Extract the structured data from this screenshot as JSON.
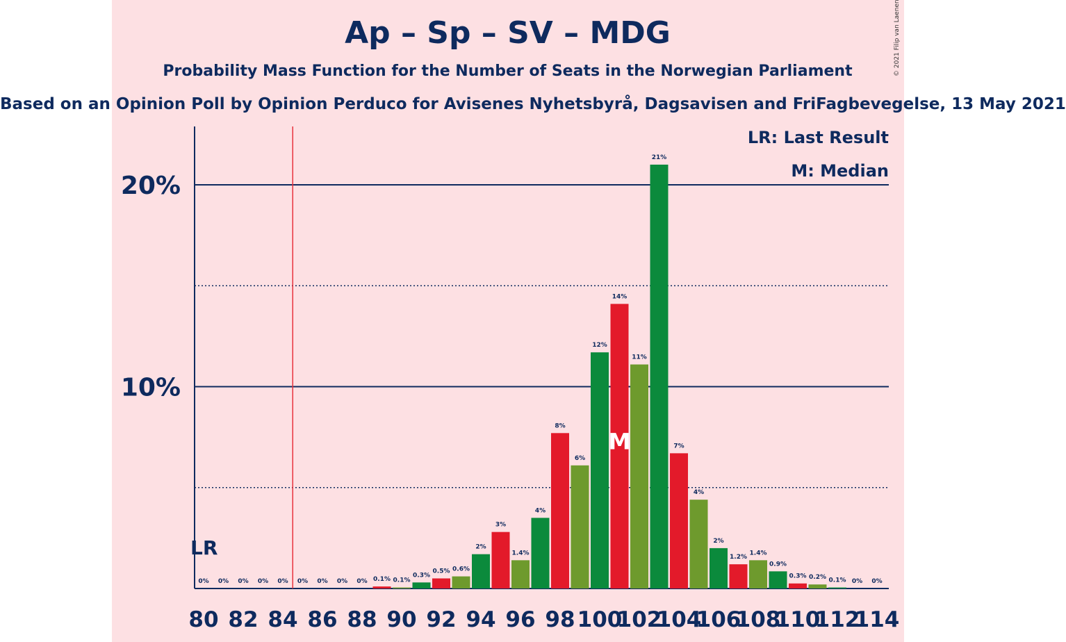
{
  "header": {
    "title": "Ap – Sp – SV – MDG",
    "subtitle": "Probability Mass Function for the Number of Seats in the Norwegian Parliament",
    "source": "Based on an Opinion Poll by Opinion Perduco for Avisenes Nyhetsbyrå, Dagsavisen and FriFagbevegelse, 13 May 2021",
    "copyright": "© 2021 Filip van Laenen"
  },
  "legend": {
    "lr": "LR: Last Result",
    "m": "M: Median"
  },
  "colors": {
    "background_panel": "#fde0e3",
    "axis_text": "#0e2a5e",
    "majority_line": "#e8323c",
    "bar_palette": [
      "#e31a2a",
      "#6e9a2d",
      "#0b8a3c"
    ]
  },
  "chart_data": {
    "type": "bar",
    "xlabel": "",
    "ylabel": "",
    "ylim": [
      0,
      23
    ],
    "y_ticks": [
      10,
      20
    ],
    "y_tick_labels": [
      "10%",
      "20%"
    ],
    "x": [
      80,
      81,
      82,
      83,
      84,
      85,
      86,
      87,
      88,
      89,
      90,
      91,
      92,
      93,
      94,
      95,
      96,
      97,
      98,
      99,
      100,
      101,
      102,
      103,
      104,
      105,
      106,
      107,
      108,
      109,
      110,
      111,
      112,
      113,
      114
    ],
    "x_tick_labels": [
      "80",
      "82",
      "84",
      "86",
      "88",
      "90",
      "92",
      "94",
      "96",
      "98",
      "100",
      "102",
      "104",
      "106",
      "108",
      "110",
      "112",
      "114"
    ],
    "values": [
      0,
      0,
      0,
      0,
      0,
      0,
      0,
      0,
      0,
      0.1,
      0.05,
      0.3,
      0.5,
      0.6,
      1.7,
      2.8,
      1.4,
      3.5,
      7.7,
      6.1,
      11.7,
      14.1,
      11.1,
      21.0,
      6.7,
      4.4,
      2.0,
      1.2,
      1.4,
      0.85,
      0.25,
      0.2,
      0.05,
      0,
      0
    ],
    "data_labels": [
      "0%",
      "0%",
      "0%",
      "0%",
      "0%",
      "0%",
      "0%",
      "0%",
      "0%",
      "0.1%",
      "0.1%",
      "0.3%",
      "0.5%",
      "0.6%",
      "2%",
      "3%",
      "1.4%",
      "4%",
      "8%",
      "6%",
      "12%",
      "14%",
      "11%",
      "21%",
      "7%",
      "4%",
      "2%",
      "1.2%",
      "1.4%",
      "0.9%",
      "0.3%",
      "0.2%",
      "0.1%",
      "0%",
      "0%"
    ],
    "last_result": 80,
    "last_result_label": "LR",
    "median": 101,
    "median_label": "M",
    "majority_threshold": 85,
    "grid": true
  }
}
